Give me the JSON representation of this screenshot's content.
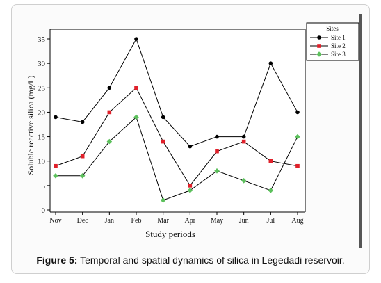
{
  "figure": {
    "caption_label": "Figure 5:",
    "caption_text": " Temporal and spatial dynamics of silica in Legedadi reservoir."
  },
  "chart_data": {
    "type": "line",
    "xlabel": "Study periods",
    "ylabel": "Soluble reactive silica (mg/L)",
    "categories": [
      "Nov",
      "Dec",
      "Jan",
      "Feb",
      "Mar",
      "Apr",
      "May",
      "Jun",
      "Jul",
      "Aug"
    ],
    "ylim": [
      0,
      35
    ],
    "yticks": [
      0,
      5,
      10,
      15,
      20,
      25,
      30,
      35
    ],
    "grid": false,
    "legend_title": "Sites",
    "legend_position": "top-right",
    "series": [
      {
        "name": "Site 1",
        "marker": "circle",
        "color": "#000000",
        "values": [
          19,
          18,
          25,
          35,
          19,
          13,
          15,
          15,
          30,
          20
        ]
      },
      {
        "name": "Site 2",
        "marker": "square",
        "color": "#e0202a",
        "values": [
          9,
          11,
          20,
          25,
          14,
          5,
          12,
          14,
          10,
          9
        ]
      },
      {
        "name": "Site 3",
        "marker": "diamond",
        "color": "#5cc05c",
        "values": [
          7,
          7,
          14,
          19,
          2,
          4,
          8,
          6,
          4,
          15
        ]
      }
    ]
  }
}
